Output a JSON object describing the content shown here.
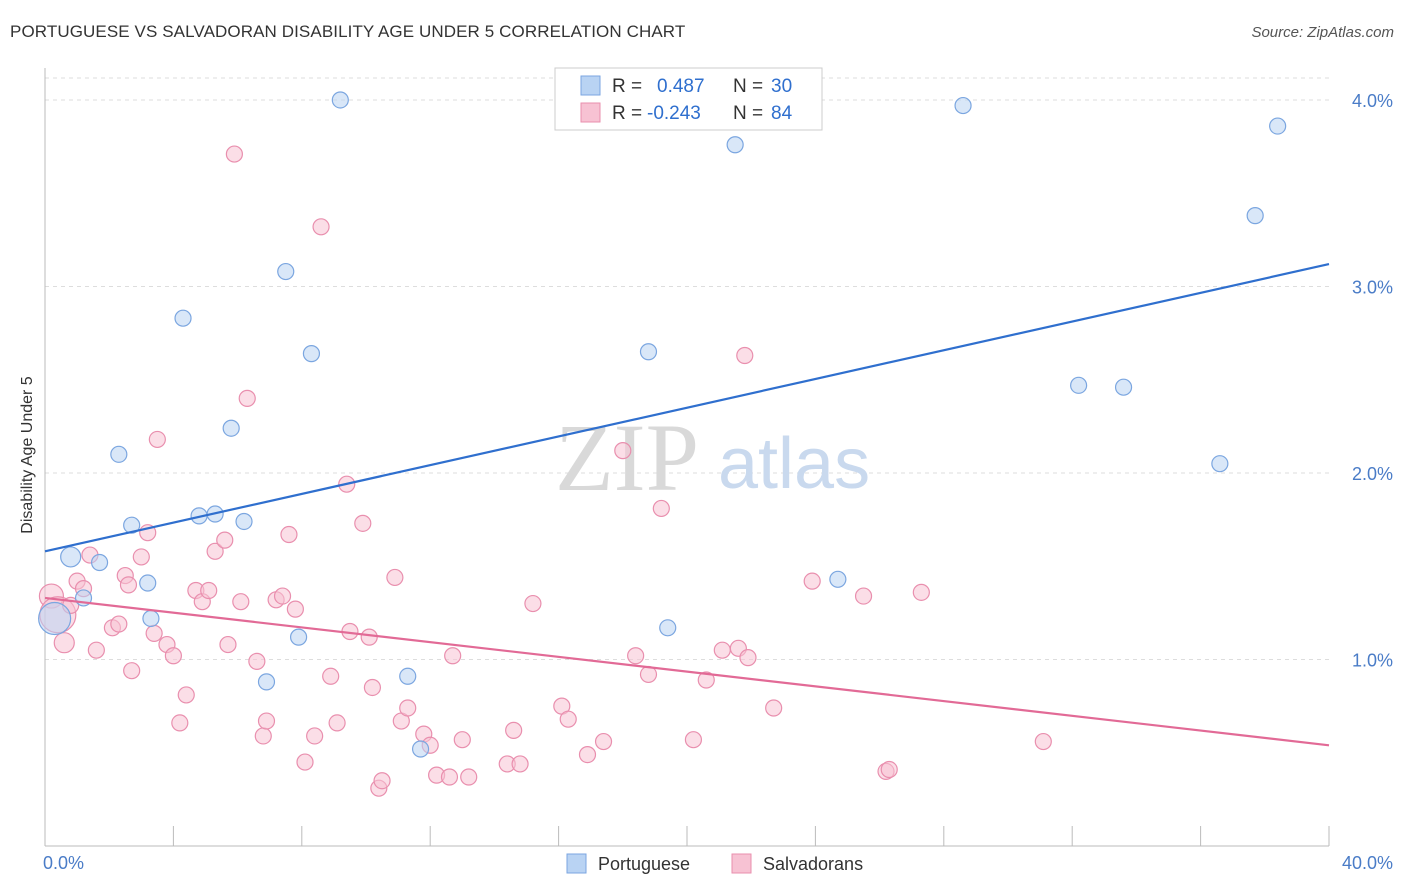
{
  "title": "PORTUGUESE VS SALVADORAN DISABILITY AGE UNDER 5 CORRELATION CHART",
  "source": "Source: ZipAtlas.com",
  "watermark": {
    "zip": "ZIP",
    "atlas": "atlas"
  },
  "colors": {
    "portuguese_fill": "#b9d3f3",
    "portuguese_stroke": "#7ba6e0",
    "portuguese_line": "#2f6fce",
    "salvadoran_fill": "#f7c2d3",
    "salvadoran_stroke": "#e98fae",
    "salvadoran_line": "#e26a96",
    "axis_text": "#4a7cc7",
    "grid": "#dddddd"
  },
  "legend": {
    "portuguese": {
      "r_label": "R =",
      "r_value": "0.487",
      "n_label": "N =",
      "n_value": "30"
    },
    "salvadoran": {
      "r_label": "R =",
      "r_value": "-0.243",
      "n_label": "N =",
      "n_value": "84"
    }
  },
  "chart_data": {
    "type": "scatter",
    "title": "PORTUGUESE VS SALVADORAN DISABILITY AGE UNDER 5 CORRELATION CHART",
    "xlabel": "",
    "ylabel": "Disability Age Under 5",
    "xlim": [
      0,
      40
    ],
    "ylim": [
      0,
      4.15
    ],
    "x_tick_labels": [
      "0.0%",
      "40.0%"
    ],
    "y_ticks": [
      1,
      2,
      3,
      4
    ],
    "y_tick_labels": [
      "1.0%",
      "2.0%",
      "3.0%",
      "4.0%"
    ],
    "grid": "horizontal dashed",
    "legend_position": "top-center",
    "series": [
      {
        "name": "Portuguese",
        "r": 0.487,
        "n": 30,
        "trend": {
          "x": [
            0,
            40
          ],
          "y": [
            1.58,
            3.12
          ]
        },
        "points": [
          {
            "x": 0.3,
            "y": 1.22,
            "s": 16
          },
          {
            "x": 0.8,
            "y": 1.55,
            "s": 10
          },
          {
            "x": 1.2,
            "y": 1.33,
            "s": 8
          },
          {
            "x": 1.7,
            "y": 1.52,
            "s": 8
          },
          {
            "x": 2.3,
            "y": 2.1,
            "s": 8
          },
          {
            "x": 2.7,
            "y": 1.72,
            "s": 8
          },
          {
            "x": 3.2,
            "y": 1.41,
            "s": 8
          },
          {
            "x": 3.3,
            "y": 1.22,
            "s": 8
          },
          {
            "x": 4.3,
            "y": 2.83,
            "s": 8
          },
          {
            "x": 4.8,
            "y": 1.77,
            "s": 8
          },
          {
            "x": 5.3,
            "y": 1.78,
            "s": 8
          },
          {
            "x": 5.8,
            "y": 2.24,
            "s": 8
          },
          {
            "x": 6.2,
            "y": 1.74,
            "s": 8
          },
          {
            "x": 6.9,
            "y": 0.88,
            "s": 8
          },
          {
            "x": 7.5,
            "y": 3.08,
            "s": 8
          },
          {
            "x": 7.9,
            "y": 1.12,
            "s": 8
          },
          {
            "x": 8.3,
            "y": 2.64,
            "s": 8
          },
          {
            "x": 9.2,
            "y": 4.0,
            "s": 8
          },
          {
            "x": 11.3,
            "y": 0.91,
            "s": 8
          },
          {
            "x": 11.7,
            "y": 0.52,
            "s": 8
          },
          {
            "x": 18.8,
            "y": 2.65,
            "s": 8
          },
          {
            "x": 19.4,
            "y": 1.17,
            "s": 8
          },
          {
            "x": 21.5,
            "y": 3.76,
            "s": 8
          },
          {
            "x": 24.7,
            "y": 1.43,
            "s": 8
          },
          {
            "x": 28.6,
            "y": 3.97,
            "s": 8
          },
          {
            "x": 32.2,
            "y": 2.47,
            "s": 8
          },
          {
            "x": 33.6,
            "y": 2.46,
            "s": 8
          },
          {
            "x": 36.6,
            "y": 2.05,
            "s": 8
          },
          {
            "x": 37.7,
            "y": 3.38,
            "s": 8
          },
          {
            "x": 38.4,
            "y": 3.86,
            "s": 8
          }
        ]
      },
      {
        "name": "Salvadorans",
        "r": -0.243,
        "n": 84,
        "trend": {
          "x": [
            0,
            40
          ],
          "y": [
            1.33,
            0.54
          ]
        },
        "points": [
          {
            "x": 0.2,
            "y": 1.34,
            "s": 12
          },
          {
            "x": 0.4,
            "y": 1.24,
            "s": 18
          },
          {
            "x": 0.6,
            "y": 1.09,
            "s": 10
          },
          {
            "x": 0.8,
            "y": 1.29,
            "s": 8
          },
          {
            "x": 1.0,
            "y": 1.42,
            "s": 8
          },
          {
            "x": 1.2,
            "y": 1.38,
            "s": 8
          },
          {
            "x": 1.4,
            "y": 1.56,
            "s": 8
          },
          {
            "x": 1.6,
            "y": 1.05,
            "s": 8
          },
          {
            "x": 2.1,
            "y": 1.17,
            "s": 8
          },
          {
            "x": 2.3,
            "y": 1.19,
            "s": 8
          },
          {
            "x": 2.5,
            "y": 1.45,
            "s": 8
          },
          {
            "x": 2.6,
            "y": 1.4,
            "s": 8
          },
          {
            "x": 2.7,
            "y": 0.94,
            "s": 8
          },
          {
            "x": 3.0,
            "y": 1.55,
            "s": 8
          },
          {
            "x": 3.2,
            "y": 1.68,
            "s": 8
          },
          {
            "x": 3.4,
            "y": 1.14,
            "s": 8
          },
          {
            "x": 3.5,
            "y": 2.18,
            "s": 8
          },
          {
            "x": 3.8,
            "y": 1.08,
            "s": 8
          },
          {
            "x": 4.0,
            "y": 1.02,
            "s": 8
          },
          {
            "x": 4.2,
            "y": 0.66,
            "s": 8
          },
          {
            "x": 4.4,
            "y": 0.81,
            "s": 8
          },
          {
            "x": 4.7,
            "y": 1.37,
            "s": 8
          },
          {
            "x": 4.9,
            "y": 1.31,
            "s": 8
          },
          {
            "x": 5.1,
            "y": 1.37,
            "s": 8
          },
          {
            "x": 5.3,
            "y": 1.58,
            "s": 8
          },
          {
            "x": 5.6,
            "y": 1.64,
            "s": 8
          },
          {
            "x": 5.7,
            "y": 1.08,
            "s": 8
          },
          {
            "x": 5.9,
            "y": 3.71,
            "s": 8
          },
          {
            "x": 6.1,
            "y": 1.31,
            "s": 8
          },
          {
            "x": 6.3,
            "y": 2.4,
            "s": 8
          },
          {
            "x": 6.6,
            "y": 0.99,
            "s": 8
          },
          {
            "x": 6.8,
            "y": 0.59,
            "s": 8
          },
          {
            "x": 6.9,
            "y": 0.67,
            "s": 8
          },
          {
            "x": 7.2,
            "y": 1.32,
            "s": 8
          },
          {
            "x": 7.4,
            "y": 1.34,
            "s": 8
          },
          {
            "x": 7.6,
            "y": 1.67,
            "s": 8
          },
          {
            "x": 7.8,
            "y": 1.27,
            "s": 8
          },
          {
            "x": 8.1,
            "y": 0.45,
            "s": 8
          },
          {
            "x": 8.4,
            "y": 0.59,
            "s": 8
          },
          {
            "x": 8.6,
            "y": 3.32,
            "s": 8
          },
          {
            "x": 8.9,
            "y": 0.91,
            "s": 8
          },
          {
            "x": 9.1,
            "y": 0.66,
            "s": 8
          },
          {
            "x": 9.4,
            "y": 1.94,
            "s": 8
          },
          {
            "x": 9.5,
            "y": 1.15,
            "s": 8
          },
          {
            "x": 9.9,
            "y": 1.73,
            "s": 8
          },
          {
            "x": 10.1,
            "y": 1.12,
            "s": 8
          },
          {
            "x": 10.2,
            "y": 0.85,
            "s": 8
          },
          {
            "x": 10.4,
            "y": 0.31,
            "s": 8
          },
          {
            "x": 10.5,
            "y": 0.35,
            "s": 8
          },
          {
            "x": 10.9,
            "y": 1.44,
            "s": 8
          },
          {
            "x": 11.1,
            "y": 0.67,
            "s": 8
          },
          {
            "x": 11.3,
            "y": 0.74,
            "s": 8
          },
          {
            "x": 11.8,
            "y": 0.6,
            "s": 8
          },
          {
            "x": 12.0,
            "y": 0.54,
            "s": 8
          },
          {
            "x": 12.2,
            "y": 0.38,
            "s": 8
          },
          {
            "x": 12.6,
            "y": 0.37,
            "s": 8
          },
          {
            "x": 12.7,
            "y": 1.02,
            "s": 8
          },
          {
            "x": 13.0,
            "y": 0.57,
            "s": 8
          },
          {
            "x": 13.2,
            "y": 0.37,
            "s": 8
          },
          {
            "x": 14.4,
            "y": 0.44,
            "s": 8
          },
          {
            "x": 14.6,
            "y": 0.62,
            "s": 8
          },
          {
            "x": 14.8,
            "y": 0.44,
            "s": 8
          },
          {
            "x": 15.2,
            "y": 1.3,
            "s": 8
          },
          {
            "x": 16.1,
            "y": 0.75,
            "s": 8
          },
          {
            "x": 16.3,
            "y": 0.68,
            "s": 8
          },
          {
            "x": 16.9,
            "y": 0.49,
            "s": 8
          },
          {
            "x": 17.4,
            "y": 0.56,
            "s": 8
          },
          {
            "x": 18.0,
            "y": 2.12,
            "s": 8
          },
          {
            "x": 18.4,
            "y": 1.02,
            "s": 8
          },
          {
            "x": 18.8,
            "y": 0.92,
            "s": 8
          },
          {
            "x": 19.2,
            "y": 1.81,
            "s": 8
          },
          {
            "x": 20.2,
            "y": 0.57,
            "s": 8
          },
          {
            "x": 20.6,
            "y": 0.89,
            "s": 8
          },
          {
            "x": 21.1,
            "y": 1.05,
            "s": 8
          },
          {
            "x": 21.6,
            "y": 1.06,
            "s": 8
          },
          {
            "x": 21.8,
            "y": 2.63,
            "s": 8
          },
          {
            "x": 21.9,
            "y": 1.01,
            "s": 8
          },
          {
            "x": 22.7,
            "y": 0.74,
            "s": 8
          },
          {
            "x": 23.9,
            "y": 1.42,
            "s": 8
          },
          {
            "x": 25.5,
            "y": 1.34,
            "s": 8
          },
          {
            "x": 26.2,
            "y": 0.4,
            "s": 8
          },
          {
            "x": 26.3,
            "y": 0.41,
            "s": 8
          },
          {
            "x": 27.3,
            "y": 1.36,
            "s": 8
          },
          {
            "x": 31.1,
            "y": 0.56,
            "s": 8
          }
        ]
      }
    ]
  }
}
